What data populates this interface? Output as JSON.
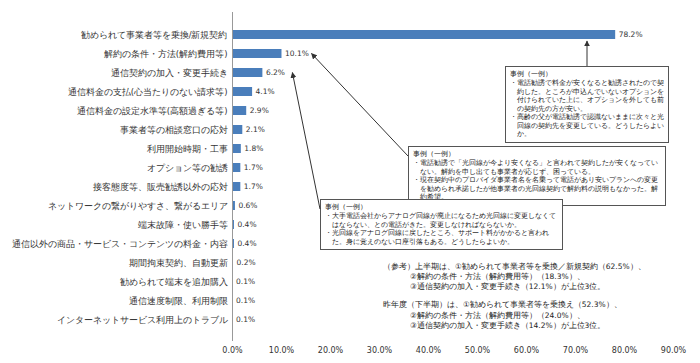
{
  "chart_data": {
    "type": "bar",
    "orientation": "horizontal",
    "categories": [
      "勧められて事業者等を乗換/新規契約",
      "解約の条件・方法(解約費用等)",
      "通信契約の加入・変更手続き",
      "通信料金の支払(心当たりのない請求等)",
      "通信料金の設定水準等(高額過ぎる等)",
      "事業者等の相談窓口の応対",
      "利用開始時期・工事",
      "オプション等の勧誘",
      "接客態度等、販売勧誘以外の応対",
      "ネットワークの繋がりやすさ、繋がるエリア",
      "端末故障・使い勝手等",
      "通信以外の商品・サービス・コンテンツの料金・内容",
      "期間拘束契約、自動更新",
      "勧められて端末を追加購入",
      "通信速度制限、利用制限",
      "インターネットサービス利用上のトラブル"
    ],
    "values": [
      78.2,
      10.1,
      6.2,
      4.1,
      2.9,
      2.1,
      1.8,
      1.7,
      1.7,
      0.6,
      0.4,
      0.4,
      0.2,
      0.1,
      0.1,
      0.1
    ],
    "value_labels": [
      "78.2%",
      "10.1%",
      "6.2%",
      "4.1%",
      "2.9%",
      "2.1%",
      "1.8%",
      "1.7%",
      "1.7%",
      "0.6%",
      "0.4%",
      "0.4%",
      "0.2%",
      "0.1%",
      "0.1%",
      "0.1%"
    ],
    "data_labels": true,
    "color": "#4a7ebb",
    "grid": false,
    "xlim": [
      0,
      90
    ],
    "xticks": [
      {
        "value": 0,
        "label": "0.0%"
      },
      {
        "value": 10,
        "label": "10.0%"
      },
      {
        "value": 20,
        "label": "20.0%"
      },
      {
        "value": 30,
        "label": "30.0%"
      },
      {
        "value": 40,
        "label": "40.0%"
      },
      {
        "value": 50,
        "label": "50.0%"
      },
      {
        "value": 60,
        "label": "60.0%"
      },
      {
        "value": 70,
        "label": "70.0%"
      },
      {
        "value": 80,
        "label": "80.0%"
      },
      {
        "value": 90,
        "label": "90.0%"
      }
    ],
    "annotations": [
      {
        "title": "事例（一例）",
        "items": [
          "・電話勧誘で料金が安くなると勧誘されたので契約した。ところが申込んでいないオプションを付けられていた上に、オプションを外しても前の契約先の方が安い。",
          "・高齢の父が電話勧誘で認識ないままに次々と光回線の契約先を変更している。どうしたらよいか。"
        ]
      },
      {
        "title": "事例（一例）",
        "items": [
          "・電話勧誘で「光回線が今より安くなる」と言われて契約したが安くなっていない。解約を申し出ても事業者が応じず、困っている。",
          "・現在契約中のプロバイダ事業者名を名乗って電話があり安いプランへの変更を勧められ承諾したが他事業者の光回線契約で解約料の説明もなかった。解約希望。"
        ]
      },
      {
        "title": "事例（一例）",
        "items": [
          "・大手電話会社からアナログ回線が廃止になるため光回線に変更しなくてはならない、との電話がきた。変更しなければならないか。",
          "・光回線をアナログ回線に戻したところ、サポート料がかかると言われた。身に覚えのない口座引落もある。どうしたらよいか。"
        ]
      }
    ],
    "notes": [
      [
        "（参考）上半期は、①勧められて事業者等を乗換／新規契約（62.5%）、",
        "②解約の条件・方法（解約費用等）（18.3%）、",
        "③通信契約の加入・変更手続き（12.1%）が上位3位。"
      ],
      [
        "昨年度（下半期）は、①勧められて事業者等を乗換え（52.3%）、",
        "②解約の条件・方法（解約費用等）（24.0%）、",
        "③通信契約の加入・変更手続き（14.2%）が上位3位。"
      ]
    ]
  }
}
